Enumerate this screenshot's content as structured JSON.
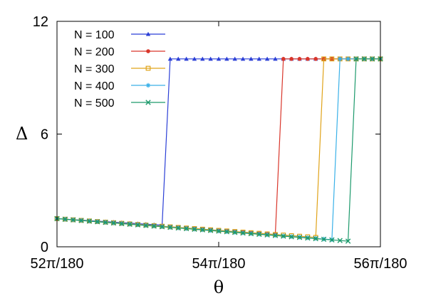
{
  "chart_data": {
    "type": "line",
    "title": "",
    "xlabel": "θ",
    "ylabel": "Δ",
    "xlim": [
      52,
      56
    ],
    "ylim": [
      0,
      12
    ],
    "x_unit": "degrees (π/180 rad)",
    "xticks": [
      {
        "value": 52,
        "label": "52π/180"
      },
      {
        "value": 54,
        "label": "54π/180"
      },
      {
        "value": 56,
        "label": "56π/180"
      }
    ],
    "yticks": [
      {
        "value": 0,
        "label": "0"
      },
      {
        "value": 6,
        "label": "6"
      },
      {
        "value": 12,
        "label": "12"
      }
    ],
    "grid": false,
    "legend_position": "top-left",
    "x_step": 0.1,
    "series": [
      {
        "name": "N = 100",
        "color": "#2b3fd6",
        "marker": "triangle",
        "transition": 53.3,
        "low_start": 1.5,
        "low_end": 1.15,
        "high": 10.0
      },
      {
        "name": "N = 200",
        "color": "#d9362b",
        "marker": "circle",
        "transition": 54.7,
        "low_start": 1.5,
        "low_end": 0.65,
        "high": 10.0
      },
      {
        "name": "N = 300",
        "color": "#e0a319",
        "marker": "square-open",
        "transition": 55.2,
        "low_start": 1.5,
        "low_end": 0.5,
        "high": 10.0
      },
      {
        "name": "N = 400",
        "color": "#3ab1e8",
        "marker": "star",
        "transition": 55.4,
        "low_start": 1.5,
        "low_end": 0.38,
        "high": 10.0
      },
      {
        "name": "N = 500",
        "color": "#1d9a6c",
        "marker": "x",
        "transition": 55.6,
        "low_start": 1.5,
        "low_end": 0.3,
        "high": 10.0
      }
    ]
  }
}
